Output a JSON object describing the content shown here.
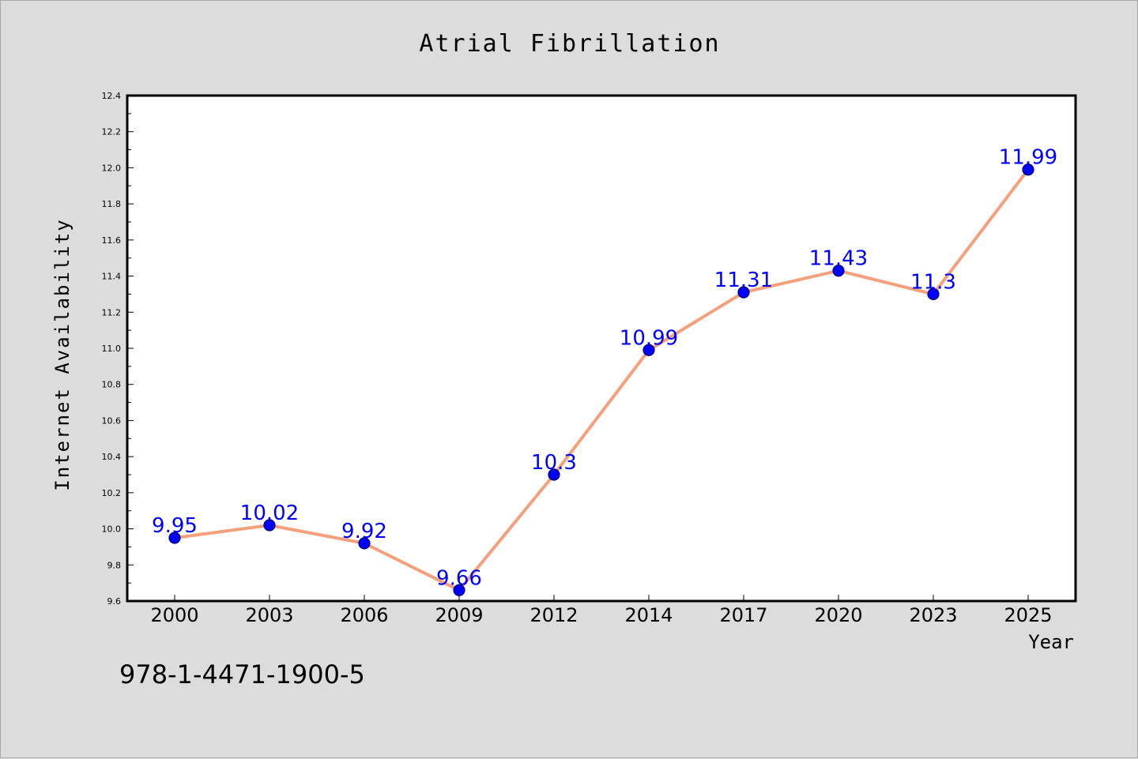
{
  "chart_data": {
    "type": "line",
    "title": "Atrial Fibrillation",
    "xlabel": "Year",
    "ylabel": "Internet Availability",
    "categories": [
      "2000",
      "2003",
      "2006",
      "2009",
      "2012",
      "2014",
      "2017",
      "2020",
      "2023",
      "2025"
    ],
    "series": [
      {
        "values": [
          9.95,
          10.02,
          9.92,
          9.66,
          10.3,
          10.99,
          11.31,
          11.43,
          11.3,
          11.99
        ]
      }
    ],
    "data_labels": [
      "9.95",
      "10.02",
      "9.92",
      "9.66",
      "10.3",
      "10.99",
      "11.31",
      "11.43",
      "11.3",
      "11.99"
    ],
    "ylim": [
      9.6,
      12.4
    ],
    "yticks": [
      "9.6",
      "9.8",
      "10.0",
      "10.2",
      "10.4",
      "10.6",
      "10.8",
      "11.0",
      "11.2",
      "11.4",
      "11.6",
      "11.8",
      "12.0",
      "12.2",
      "12.4"
    ],
    "grid": false,
    "colors": {
      "line": "#f5a07a",
      "marker": "#0000ff",
      "label": "#0000ff",
      "background": "#dcdcdc",
      "plot_area": "#ffffff"
    }
  },
  "footer": {
    "isbn": "978-1-4471-1900-5"
  }
}
